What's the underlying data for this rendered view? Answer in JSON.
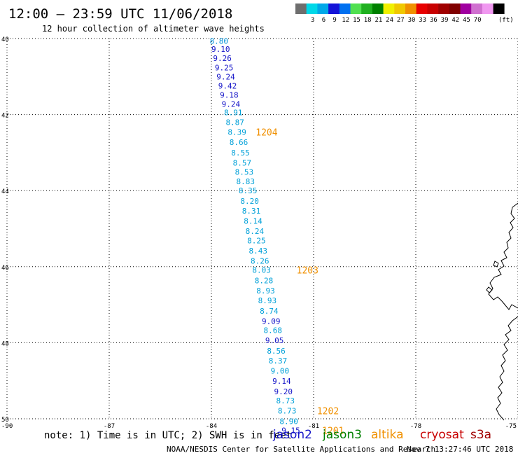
{
  "header": {
    "title": "12:00 – 23:59 UTC 11/06/2018",
    "subtitle": "12 hour collection of altimeter wave heights"
  },
  "colorbar": {
    "unit": "(ft)",
    "colors": [
      "#6e6e6e",
      "#00d8e8",
      "#00a8e8",
      "#1414d8",
      "#0070f0",
      "#50e050",
      "#20b020",
      "#008000",
      "#f0f000",
      "#f0c800",
      "#f09000",
      "#e80000",
      "#c80000",
      "#a00000",
      "#800000",
      "#a000a0",
      "#d070d0",
      "#f098f0",
      "#000000"
    ],
    "labels": [
      "3",
      "6",
      "9",
      "12",
      "15",
      "18",
      "21",
      "24",
      "27",
      "30",
      "33",
      "36",
      "39",
      "42",
      "45",
      "70"
    ]
  },
  "map": {
    "x_ticks": [
      "-90",
      "-87",
      "-84",
      "-81",
      "-78",
      "-75"
    ],
    "y_ticks": [
      "40",
      "42",
      "44",
      "46",
      "48",
      "50"
    ],
    "lon_range": [
      -90,
      -75
    ],
    "lat_range": [
      40,
      50
    ],
    "grid": "dotted"
  },
  "track": {
    "points": [
      {
        "lat": 40.06,
        "lon": -84.05,
        "value": "8.80",
        "color": "#0090d8"
      },
      {
        "lat": 40.28,
        "lon": -84.0,
        "value": "9.10",
        "color": "#1414c8"
      },
      {
        "lat": 40.52,
        "lon": -83.95,
        "value": "9.26",
        "color": "#1414c8"
      },
      {
        "lat": 40.76,
        "lon": -83.9,
        "value": "9.25",
        "color": "#1414c8"
      },
      {
        "lat": 41.0,
        "lon": -83.85,
        "value": "9.24",
        "color": "#1414c8"
      },
      {
        "lat": 41.24,
        "lon": -83.8,
        "value": "9.42",
        "color": "#1414c8"
      },
      {
        "lat": 41.48,
        "lon": -83.75,
        "value": "9.18",
        "color": "#1414c8"
      },
      {
        "lat": 41.72,
        "lon": -83.7,
        "value": "9.24",
        "color": "#1414c8"
      },
      {
        "lat": 41.94,
        "lon": -83.63,
        "value": "8.91",
        "color": "#00a0d8"
      },
      {
        "lat": 42.2,
        "lon": -83.58,
        "value": "8.87",
        "color": "#00a0d8"
      },
      {
        "lat": 42.46,
        "lon": -83.52,
        "value": "8.39",
        "color": "#00a0d8"
      },
      {
        "lat": 42.73,
        "lon": -83.47,
        "value": "8.66",
        "color": "#00a0d8"
      },
      {
        "lat": 43.0,
        "lon": -83.42,
        "value": "8.55",
        "color": "#00a0d8"
      },
      {
        "lat": 43.27,
        "lon": -83.37,
        "value": "8.57",
        "color": "#00a0d8"
      },
      {
        "lat": 43.51,
        "lon": -83.31,
        "value": "8.53",
        "color": "#00a0d8"
      },
      {
        "lat": 43.76,
        "lon": -83.27,
        "value": "8.83",
        "color": "#00a0d8"
      },
      {
        "lat": 44.0,
        "lon": -83.2,
        "value": "8.35",
        "color": "#00a0d8"
      },
      {
        "lat": 44.27,
        "lon": -83.15,
        "value": "8.20",
        "color": "#00a0d8"
      },
      {
        "lat": 44.53,
        "lon": -83.1,
        "value": "8.31",
        "color": "#00a0d8"
      },
      {
        "lat": 44.8,
        "lon": -83.05,
        "value": "8.14",
        "color": "#00a0d8"
      },
      {
        "lat": 45.06,
        "lon": -83.0,
        "value": "8.24",
        "color": "#00a0d8"
      },
      {
        "lat": 45.31,
        "lon": -82.95,
        "value": "8.25",
        "color": "#00a0d8"
      },
      {
        "lat": 45.58,
        "lon": -82.9,
        "value": "8.43",
        "color": "#00a0d8"
      },
      {
        "lat": 45.85,
        "lon": -82.85,
        "value": "8.26",
        "color": "#00a0d8"
      },
      {
        "lat": 46.09,
        "lon": -82.8,
        "value": "8.03",
        "color": "#00a0d8"
      },
      {
        "lat": 46.36,
        "lon": -82.73,
        "value": "8.28",
        "color": "#00a0d8"
      },
      {
        "lat": 46.63,
        "lon": -82.68,
        "value": "8.93",
        "color": "#00a0d8"
      },
      {
        "lat": 46.89,
        "lon": -82.63,
        "value": "8.93",
        "color": "#00a0d8"
      },
      {
        "lat": 47.16,
        "lon": -82.58,
        "value": "8.74",
        "color": "#00a0d8"
      },
      {
        "lat": 47.43,
        "lon": -82.52,
        "value": "9.09",
        "color": "#1414c8"
      },
      {
        "lat": 47.67,
        "lon": -82.47,
        "value": "8.68",
        "color": "#00a0d8"
      },
      {
        "lat": 47.94,
        "lon": -82.42,
        "value": "9.05",
        "color": "#1414c8"
      },
      {
        "lat": 48.21,
        "lon": -82.37,
        "value": "8.56",
        "color": "#00a0d8"
      },
      {
        "lat": 48.47,
        "lon": -82.32,
        "value": "8.37",
        "color": "#00a0d8"
      },
      {
        "lat": 48.74,
        "lon": -82.26,
        "value": "9.00",
        "color": "#00a0d8"
      },
      {
        "lat": 49.01,
        "lon": -82.21,
        "value": "9.14",
        "color": "#1414c8"
      },
      {
        "lat": 49.28,
        "lon": -82.16,
        "value": "9.20",
        "color": "#1414c8"
      },
      {
        "lat": 49.52,
        "lon": -82.1,
        "value": "8.73",
        "color": "#00a0d8"
      },
      {
        "lat": 49.79,
        "lon": -82.05,
        "value": "8.73",
        "color": "#00a0d8"
      },
      {
        "lat": 50.06,
        "lon": -82.0,
        "value": "8.90",
        "color": "#00a0d8"
      },
      {
        "lat": 50.3,
        "lon": -81.94,
        "value": "9.15",
        "color": "#1414c8"
      }
    ],
    "times": [
      {
        "lat": 42.46,
        "lon": -82.7,
        "value": "1204"
      },
      {
        "lat": 46.09,
        "lon": -81.5,
        "value": "1203"
      },
      {
        "lat": 49.79,
        "lon": -80.9,
        "value": "1202"
      },
      {
        "lat": 50.3,
        "lon": -80.75,
        "value": "1201"
      }
    ],
    "time_color": "#f09000"
  },
  "footer": {
    "note": "note: 1) Time is in UTC; 2) SWH is in feet",
    "satellites": [
      {
        "name": "jason2",
        "color": "#1414c8"
      },
      {
        "name": "jason3",
        "color": "#008000"
      },
      {
        "name": "altika",
        "color": "#f09000"
      },
      {
        "name": "cryosat",
        "color": "#c80000"
      },
      {
        "name": "s3a",
        "color": "#a00000"
      }
    ],
    "credit": "NOAA/NESDIS Center for Satellite Applications and Research",
    "timestamp": "Nov  7 13:27:46 UTC 2018"
  }
}
